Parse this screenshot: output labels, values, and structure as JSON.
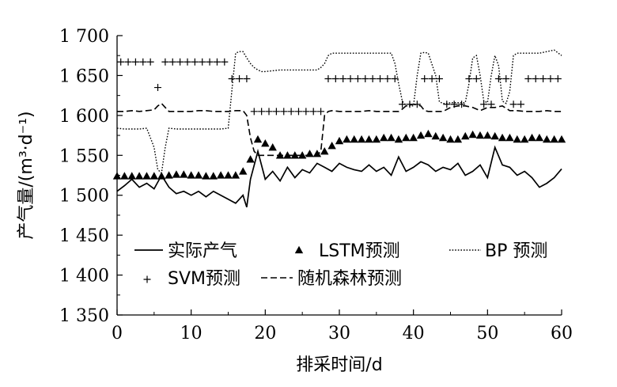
{
  "chart_data": {
    "type": "line",
    "xlabel": "排采时间/d",
    "ylabel": "产气量/(m³·d⁻¹)",
    "xlim": [
      0,
      60
    ],
    "ylim": [
      1350,
      1700
    ],
    "x_ticks": [
      0,
      10,
      20,
      30,
      40,
      50,
      60
    ],
    "x_tick_labels": [
      "0",
      "10",
      "20",
      "30",
      "40",
      "50",
      "60"
    ],
    "y_ticks": [
      1350,
      1400,
      1450,
      1500,
      1550,
      1600,
      1650,
      1700
    ],
    "y_tick_labels": [
      "1 350",
      "1 400",
      "1 450",
      "1 500",
      "1 550",
      "1 600",
      "1 650",
      "1 700"
    ],
    "grid": false,
    "legend_position": "lower-middle",
    "series": [
      {
        "name": "实际产气",
        "style": "solid",
        "x": [
          0,
          1,
          2,
          3,
          4,
          5,
          6,
          7,
          8,
          9,
          10,
          11,
          12,
          13,
          14,
          15,
          16,
          17,
          17.5,
          18,
          19,
          20,
          21,
          22,
          23,
          24,
          25,
          26,
          27,
          28,
          29,
          30,
          31,
          32,
          33,
          34,
          35,
          36,
          37,
          38,
          39,
          40,
          41,
          42,
          43,
          44,
          45,
          46,
          47,
          48,
          49,
          50,
          51,
          52,
          53,
          54,
          55,
          56,
          57,
          58,
          59,
          60
        ],
        "values": [
          1505,
          1512,
          1520,
          1510,
          1515,
          1508,
          1525,
          1510,
          1502,
          1505,
          1500,
          1505,
          1498,
          1505,
          1500,
          1495,
          1490,
          1500,
          1485,
          1520,
          1555,
          1520,
          1530,
          1518,
          1535,
          1522,
          1532,
          1528,
          1540,
          1535,
          1530,
          1540,
          1535,
          1532,
          1530,
          1538,
          1530,
          1535,
          1525,
          1548,
          1530,
          1535,
          1542,
          1538,
          1530,
          1535,
          1532,
          1540,
          1525,
          1530,
          1538,
          1522,
          1560,
          1538,
          1535,
          1525,
          1530,
          1522,
          1510,
          1515,
          1522,
          1533
        ]
      },
      {
        "name": "LSTM预测",
        "style": "triangle",
        "x": [
          0,
          1,
          2,
          3,
          4,
          5,
          6,
          7,
          8,
          9,
          10,
          11,
          12,
          13,
          14,
          15,
          16,
          17,
          18,
          19,
          20,
          21,
          22,
          23,
          24,
          25,
          26,
          27,
          28,
          29,
          30,
          31,
          32,
          33,
          34,
          35,
          36,
          37,
          38,
          39,
          40,
          41,
          42,
          43,
          44,
          45,
          46,
          47,
          48,
          49,
          50,
          51,
          52,
          53,
          54,
          55,
          56,
          57,
          58,
          59,
          60
        ],
        "values": [
          1524,
          1524,
          1524,
          1524,
          1524,
          1524,
          1524,
          1525,
          1526,
          1526,
          1525,
          1525,
          1524,
          1524,
          1525,
          1525,
          1525,
          1530,
          1545,
          1570,
          1565,
          1560,
          1550,
          1550,
          1550,
          1550,
          1552,
          1552,
          1555,
          1562,
          1568,
          1570,
          1570,
          1570,
          1570,
          1570,
          1572,
          1572,
          1570,
          1572,
          1572,
          1575,
          1577,
          1574,
          1572,
          1570,
          1570,
          1574,
          1576,
          1575,
          1575,
          1574,
          1572,
          1572,
          1570,
          1570,
          1572,
          1572,
          1570,
          1570,
          1570
        ]
      },
      {
        "name": "BP 预测",
        "style": "dotted",
        "x": [
          0,
          1,
          2,
          3,
          4,
          5,
          5.5,
          6,
          6.5,
          7,
          8,
          9,
          10,
          11,
          12,
          13,
          14,
          15,
          15.5,
          16,
          16.5,
          17,
          17.5,
          18,
          18.5,
          19,
          19.5,
          20,
          21,
          22,
          23,
          24,
          25,
          26,
          27,
          27.5,
          28,
          28.5,
          29,
          30,
          31,
          32,
          33,
          34,
          35,
          36,
          37,
          37.5,
          38,
          38.5,
          39,
          40,
          40.5,
          41,
          41.5,
          42,
          43,
          43.5,
          44,
          44.5,
          45,
          46,
          47,
          47.5,
          48,
          48.5,
          49,
          49.5,
          50,
          50.5,
          51,
          51.5,
          52,
          52.5,
          53,
          53.5,
          54,
          54.5,
          55,
          56,
          57,
          58,
          59,
          60
        ],
        "values": [
          1584,
          1583,
          1583,
          1583,
          1584,
          1560,
          1532,
          1528,
          1560,
          1584,
          1583,
          1583,
          1583,
          1583,
          1583,
          1583,
          1583,
          1584,
          1632,
          1678,
          1680,
          1680,
          1672,
          1665,
          1660,
          1657,
          1655,
          1655,
          1656,
          1657,
          1657,
          1657,
          1657,
          1657,
          1657,
          1660,
          1665,
          1675,
          1678,
          1678,
          1678,
          1678,
          1678,
          1678,
          1678,
          1678,
          1678,
          1665,
          1640,
          1618,
          1612,
          1612,
          1650,
          1678,
          1679,
          1678,
          1650,
          1617,
          1615,
          1615,
          1616,
          1616,
          1616,
          1640,
          1672,
          1675,
          1650,
          1618,
          1616,
          1650,
          1675,
          1662,
          1618,
          1615,
          1630,
          1675,
          1678,
          1678,
          1678,
          1678,
          1678,
          1680,
          1682,
          1675
        ]
      },
      {
        "name": "SVM预测",
        "style": "plus",
        "x": [
          0.5,
          1.5,
          2.5,
          3.5,
          4.5,
          5.5,
          6.5,
          7.5,
          8.5,
          9.5,
          10.5,
          11.5,
          12.5,
          13.5,
          14.5,
          15.5,
          16.5,
          17.5,
          18.5,
          19.5,
          20.5,
          21.5,
          22.5,
          23.5,
          24.5,
          25.5,
          26.5,
          27.5,
          28.5,
          29.5,
          30.5,
          31.5,
          32.5,
          33.5,
          34.5,
          35.5,
          36.5,
          37.5,
          38.5,
          39.5,
          40.5,
          41.5,
          42.5,
          43.5,
          44.5,
          45.5,
          46.5,
          47.5,
          48.5,
          49.5,
          50.5,
          51.5,
          52.5,
          53.5,
          54.5,
          55.5,
          56.5,
          57.5,
          58.5,
          59.5
        ],
        "values": [
          1667,
          1667,
          1667,
          1667,
          1667,
          1635,
          1667,
          1667,
          1667,
          1667,
          1667,
          1667,
          1667,
          1667,
          1667,
          1646,
          1646,
          1646,
          1605,
          1605,
          1605,
          1605,
          1605,
          1605,
          1605,
          1605,
          1605,
          1605,
          1646,
          1646,
          1646,
          1646,
          1646,
          1646,
          1646,
          1646,
          1646,
          1646,
          1614,
          1614,
          1614,
          1646,
          1646,
          1646,
          1614,
          1614,
          1614,
          1646,
          1646,
          1614,
          1614,
          1646,
          1646,
          1614,
          1614,
          1646,
          1646,
          1646,
          1646,
          1646
        ]
      },
      {
        "name": "随机森林预测",
        "style": "dashed",
        "x": [
          0,
          1,
          2,
          3,
          4,
          5,
          5.5,
          6,
          6.5,
          7,
          8,
          9,
          10,
          11,
          12,
          13,
          14,
          15,
          16,
          17,
          17.5,
          18,
          18.5,
          19,
          20,
          21,
          22,
          23,
          24,
          25,
          26,
          27,
          27.5,
          28,
          28.5,
          29,
          30,
          31,
          32,
          33,
          34,
          35,
          36,
          37,
          38,
          38.5,
          39,
          40,
          41,
          41.5,
          42,
          43,
          44,
          45,
          46,
          47,
          48,
          49,
          50,
          51,
          52,
          53,
          54,
          55,
          56,
          57,
          58,
          59,
          60
        ],
        "values": [
          1605,
          1605,
          1606,
          1605,
          1606,
          1607,
          1612,
          1615,
          1610,
          1605,
          1605,
          1605,
          1605,
          1606,
          1606,
          1605,
          1605,
          1605,
          1606,
          1606,
          1600,
          1572,
          1555,
          1550,
          1550,
          1550,
          1550,
          1550,
          1550,
          1550,
          1550,
          1550,
          1555,
          1600,
          1605,
          1606,
          1605,
          1605,
          1605,
          1605,
          1606,
          1605,
          1605,
          1605,
          1605,
          1608,
          1612,
          1614,
          1612,
          1606,
          1605,
          1605,
          1605,
          1610,
          1612,
          1612,
          1610,
          1606,
          1610,
          1610,
          1612,
          1606,
          1606,
          1605,
          1605,
          1605,
          1606,
          1605,
          1605
        ]
      }
    ]
  }
}
